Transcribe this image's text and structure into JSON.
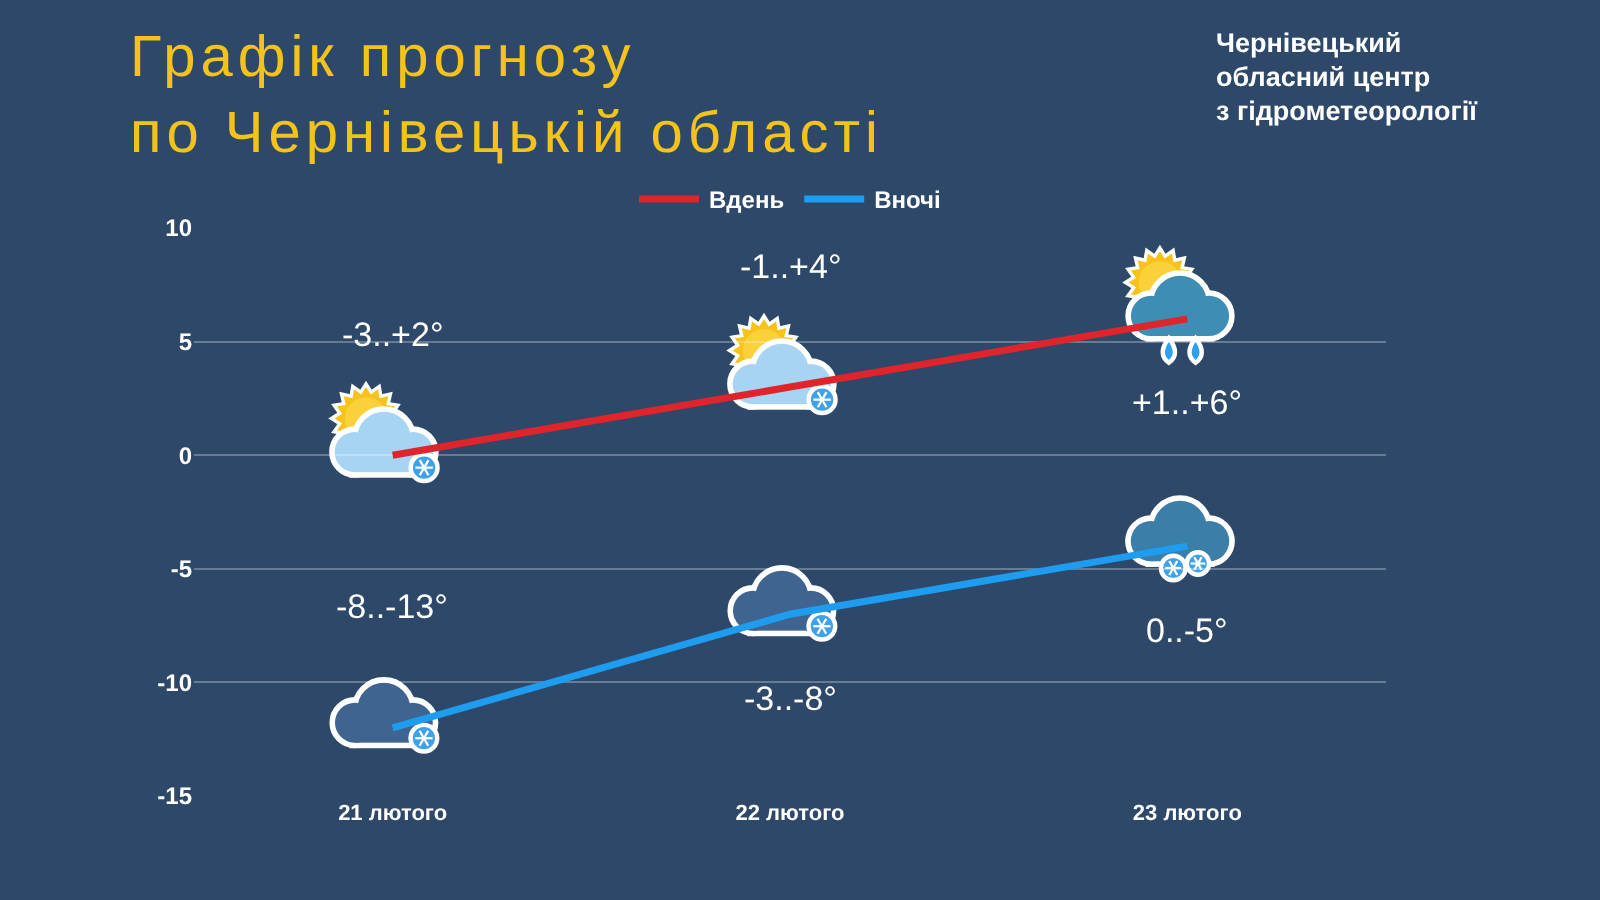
{
  "chart_data": {
    "type": "line",
    "title": "Графік прогнозу\nпо Чернівецькій області",
    "annotations": [
      "Чернівецький\nобласний центр\nз гідрометеорології",
      {
        "text": "-3..+2°",
        "x": "21 лютого",
        "y": 0
      },
      {
        "text": "-1..+4°",
        "x": "22 лютого",
        "y": 3
      },
      {
        "text": "+1..+6°",
        "x": "23 лютого",
        "y": 6
      },
      {
        "text": "-8..-13°",
        "x": "21 лютого",
        "y": -12
      },
      {
        "text": "-3..-8°",
        "x": "22 лютого",
        "y": -7
      },
      {
        "text": "0..-5°",
        "x": "23 лютого",
        "y": -4
      }
    ],
    "categories": [
      "21 лютого",
      "22 лютого",
      "23 лютого"
    ],
    "series": [
      {
        "name": "Вдень",
        "color": "#e0242b",
        "values": [
          0,
          3,
          6
        ]
      },
      {
        "name": "Вночі",
        "color": "#1e9cf0",
        "values": [
          -12,
          -7,
          -4
        ]
      }
    ],
    "ylim": [
      -15,
      10
    ],
    "yticks": [
      -15,
      -10,
      -5,
      0,
      5,
      10
    ],
    "grid": "y",
    "legend": "top",
    "line_style": "solid"
  }
}
